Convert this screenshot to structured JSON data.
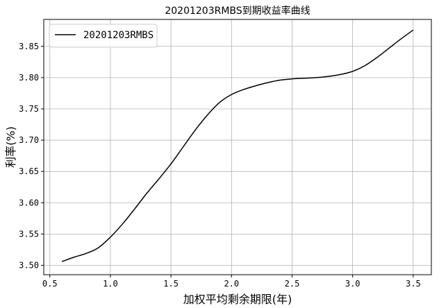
{
  "chart_data": {
    "type": "line",
    "title": "20201203RMBS到期收益率曲线",
    "xlabel": "加权平均剩余期限(年)",
    "ylabel": "利率(%)",
    "xlim": [
      0.45,
      3.65
    ],
    "ylim": [
      3.485,
      3.893
    ],
    "xticks": [
      0.5,
      1.0,
      1.5,
      2.0,
      2.5,
      3.0,
      3.5
    ],
    "xtick_labels": [
      "0.5",
      "1.0",
      "1.5",
      "2.0",
      "2.5",
      "3.0",
      "3.5"
    ],
    "yticks": [
      3.5,
      3.55,
      3.6,
      3.65,
      3.7,
      3.75,
      3.8,
      3.85
    ],
    "ytick_labels": [
      "3.50",
      "3.55",
      "3.60",
      "3.65",
      "3.70",
      "3.75",
      "3.80",
      "3.85"
    ],
    "grid": true,
    "legend_position": "top-left",
    "series": [
      {
        "name": "20201203RMBS",
        "color": "#000000",
        "x": [
          0.6,
          0.7,
          0.8,
          0.9,
          1.0,
          1.1,
          1.2,
          1.3,
          1.4,
          1.5,
          1.6,
          1.7,
          1.8,
          1.9,
          2.0,
          2.1,
          2.2,
          2.3,
          2.4,
          2.5,
          2.6,
          2.7,
          2.8,
          2.9,
          3.0,
          3.1,
          3.2,
          3.3,
          3.4,
          3.5
        ],
        "y": [
          3.506,
          3.513,
          3.519,
          3.528,
          3.545,
          3.566,
          3.59,
          3.615,
          3.638,
          3.662,
          3.689,
          3.716,
          3.74,
          3.76,
          3.773,
          3.781,
          3.787,
          3.792,
          3.796,
          3.798,
          3.799,
          3.8,
          3.802,
          3.805,
          3.81,
          3.819,
          3.832,
          3.847,
          3.862,
          3.876
        ]
      }
    ]
  }
}
